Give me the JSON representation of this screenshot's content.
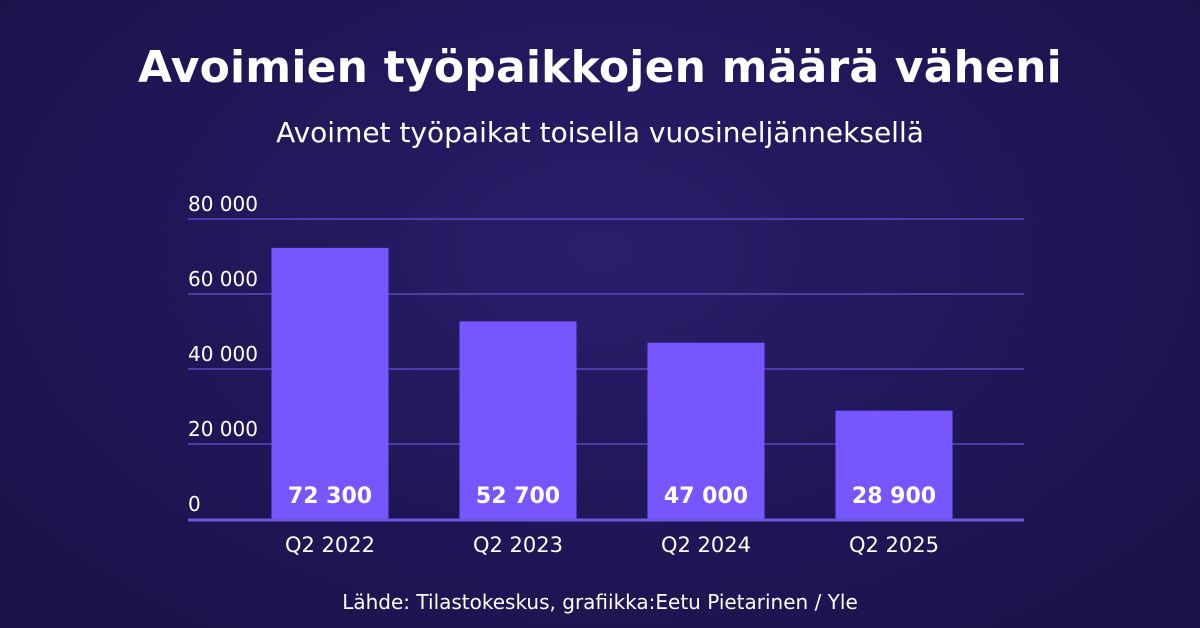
{
  "title": "Avoimien työpaikkojen määrä väheni",
  "subtitle": "Avoimet työpaikat toisella vuosineljänneksellä",
  "source": "Lähde: Tilastokeskus, grafiikka:Eetu Pietarinen / Yle",
  "colors": {
    "bar": "#7856ff",
    "grid": "#5b48c4",
    "axis": "#6a55e0"
  },
  "chart_data": {
    "type": "bar",
    "title": "Avoimien työpaikkojen määrä väheni",
    "subtitle": "Avoimet työpaikat toisella vuosineljänneksellä",
    "xlabel": "",
    "ylabel": "",
    "categories": [
      "Q2 2022",
      "Q2 2023",
      "Q2 2024",
      "Q2 2025"
    ],
    "values": [
      72300,
      52700,
      47000,
      28900
    ],
    "value_labels": [
      "72 300",
      "52 700",
      "47 000",
      "28 900"
    ],
    "ylim": [
      0,
      80000
    ],
    "yticks": [
      0,
      20000,
      40000,
      60000,
      80000
    ],
    "ytick_labels": [
      "0",
      "20 000",
      "40 000",
      "60 000",
      "80 000"
    ],
    "grid": true,
    "legend": "none"
  }
}
